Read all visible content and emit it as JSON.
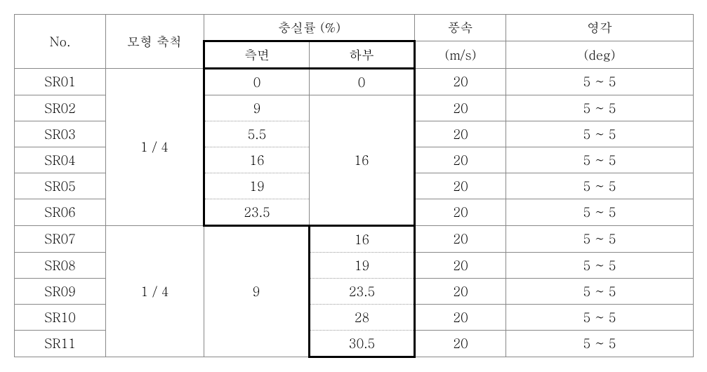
{
  "headers": {
    "no": "No.",
    "scale": "모형 축척",
    "solidity": "충실률 (%)",
    "side": "측면",
    "bottom": "하부",
    "wind": "풍속",
    "wind_unit": "(m/s)",
    "angle": "영각",
    "angle_unit": "(deg)"
  },
  "block1": {
    "scale": "1 / 4",
    "rows": [
      {
        "no": "SR01",
        "side": "0",
        "wind": "20",
        "angle": "5 ~ 5"
      },
      {
        "no": "SR02",
        "side": "9",
        "wind": "20",
        "angle": "5 ~ 5"
      },
      {
        "no": "SR03",
        "side": "5.5",
        "wind": "20",
        "angle": "5 ~ 5"
      },
      {
        "no": "SR04",
        "side": "16",
        "wind": "20",
        "angle": "5 ~ 5"
      },
      {
        "no": "SR05",
        "side": "19",
        "wind": "20",
        "angle": "5 ~ 5"
      },
      {
        "no": "SR06",
        "side": "23.5",
        "wind": "20",
        "angle": "5 ~ 5"
      }
    ],
    "bottom_r1": "0",
    "bottom_r2to6": "16"
  },
  "block2": {
    "scale": "1 / 4",
    "side_all": "9",
    "rows": [
      {
        "no": "SR07",
        "bottom": "16",
        "wind": "20",
        "angle": "5 ~ 5"
      },
      {
        "no": "SR08",
        "bottom": "19",
        "wind": "20",
        "angle": "5 ~ 5"
      },
      {
        "no": "SR09",
        "bottom": "23.5",
        "wind": "20",
        "angle": "5 ~ 5"
      },
      {
        "no": "SR10",
        "bottom": "28",
        "wind": "20",
        "angle": "5 ~ 5"
      },
      {
        "no": "SR11",
        "bottom": "30.5",
        "wind": "20",
        "angle": "5 ~ 5"
      }
    ]
  }
}
